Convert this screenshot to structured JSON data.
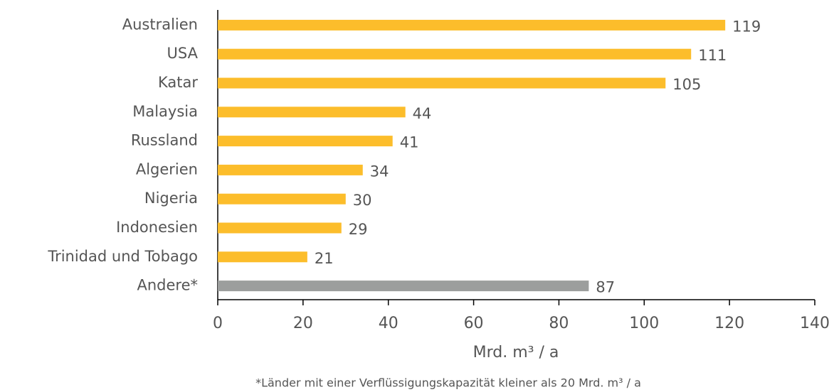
{
  "chart_data": {
    "type": "bar",
    "orientation": "horizontal",
    "categories": [
      "Australien",
      "USA",
      "Katar",
      "Malaysia",
      "Russland",
      "Algerien",
      "Nigeria",
      "Indonesien",
      "Trinidad und Tobago",
      "Andere*"
    ],
    "values": [
      119,
      111,
      105,
      44,
      41,
      34,
      30,
      29,
      21,
      87
    ],
    "colors": [
      "#fcbd2b",
      "#fcbd2b",
      "#fcbd2b",
      "#fcbd2b",
      "#fcbd2b",
      "#fcbd2b",
      "#fcbd2b",
      "#fcbd2b",
      "#fcbd2b",
      "#9c9e9d"
    ],
    "xlim": [
      0,
      140
    ],
    "xticks": [
      0,
      20,
      40,
      60,
      80,
      100,
      120,
      140
    ],
    "x_label": "Mrd. m³ / a",
    "footnote": "*Länder mit einer Verflüssigungskapazität kleiner als 20 Mrd. m³ / a"
  }
}
